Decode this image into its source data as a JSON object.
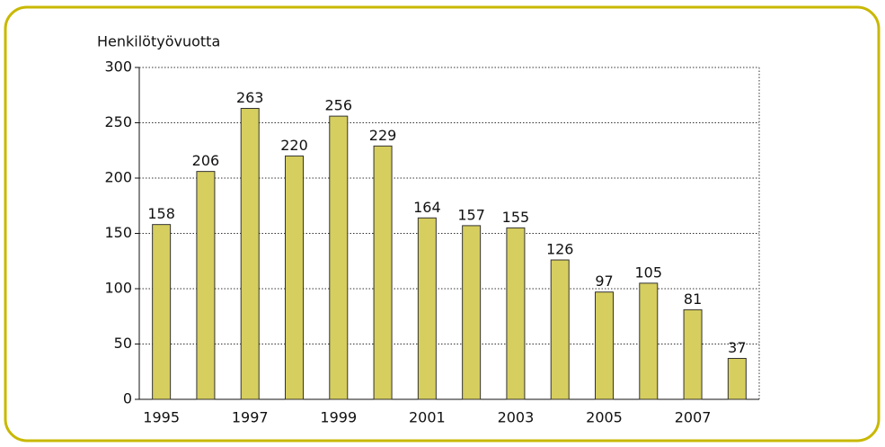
{
  "chart_data": {
    "type": "bar",
    "y_label": "Henkilötyövuotta",
    "categories": [
      "1995",
      null,
      "1997",
      null,
      "1999",
      null,
      "2001",
      null,
      "2003",
      null,
      "2005",
      null,
      "2007",
      null
    ],
    "values": [
      158,
      206,
      263,
      220,
      256,
      229,
      164,
      157,
      155,
      126,
      97,
      105,
      81,
      37
    ],
    "color": "#d6ce5e",
    "ylim": [
      0,
      300
    ],
    "yticks": [
      0,
      50,
      100,
      150,
      200,
      250,
      300
    ],
    "grid": true
  }
}
